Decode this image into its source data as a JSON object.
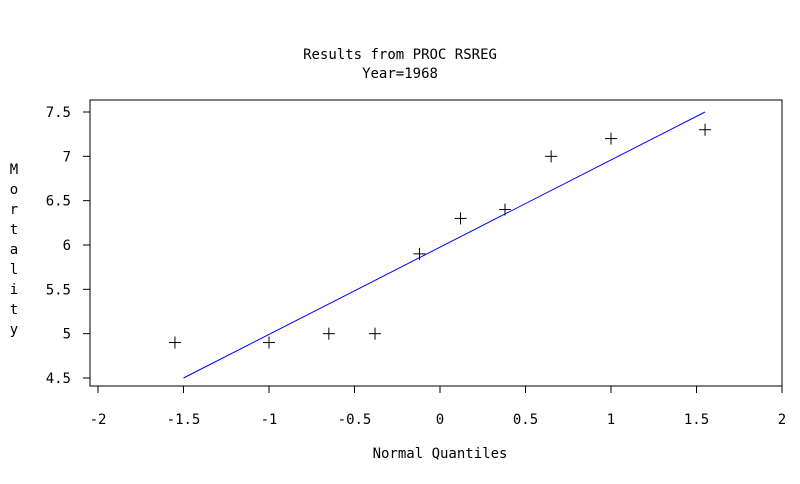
{
  "chart_data": {
    "type": "scatter",
    "title": "Results from PROC RSREG",
    "subtitle": "Year=1968",
    "xlabel": "Normal Quantiles",
    "ylabel": "Mortality",
    "xlim": [
      -2,
      2
    ],
    "ylim": [
      4.4,
      7.65
    ],
    "x_ticks": [
      -2,
      -1.5,
      -1,
      -0.5,
      0,
      0.5,
      1,
      1.5,
      2
    ],
    "x_tick_labels": [
      "-2",
      "-1.5",
      "-1",
      "-0.5",
      "0",
      "0.5",
      "1",
      "1.5",
      "2"
    ],
    "y_ticks": [
      4.5,
      5,
      5.5,
      6,
      6.5,
      7,
      7.5
    ],
    "y_tick_labels": [
      "4.5",
      "5",
      "5.5",
      "6",
      "6.5",
      "7",
      "7.5"
    ],
    "grid": false,
    "marker": "+",
    "points": [
      {
        "x": -1.55,
        "y": 4.9
      },
      {
        "x": -1.0,
        "y": 4.9
      },
      {
        "x": -0.65,
        "y": 5.0
      },
      {
        "x": -0.38,
        "y": 5.0
      },
      {
        "x": -0.12,
        "y": 5.9
      },
      {
        "x": 0.12,
        "y": 6.3
      },
      {
        "x": 0.38,
        "y": 6.4
      },
      {
        "x": 0.65,
        "y": 7.0
      },
      {
        "x": 1.0,
        "y": 7.2
      },
      {
        "x": 1.55,
        "y": 7.3
      }
    ],
    "fit_line": {
      "x": [
        -1.5,
        1.55
      ],
      "y": [
        4.5,
        7.5
      ],
      "color": "#0000ff"
    },
    "colors": {
      "points": "#000000",
      "fit_line": "#0000ff",
      "frame": "#000000"
    }
  }
}
